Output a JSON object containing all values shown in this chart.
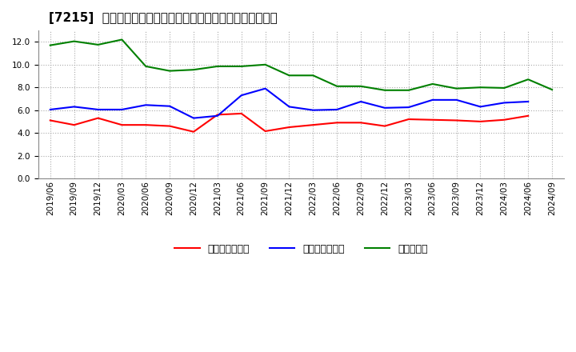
{
  "title": "[7215]  売上債権回転率、買入債務回転率、在庫回転率の推移",
  "x_labels": [
    "2019/06",
    "2019/09",
    "2019/12",
    "2020/03",
    "2020/06",
    "2020/09",
    "2020/12",
    "2021/03",
    "2021/06",
    "2021/09",
    "2021/12",
    "2022/03",
    "2022/06",
    "2022/09",
    "2022/12",
    "2023/03",
    "2023/06",
    "2023/09",
    "2023/12",
    "2024/03",
    "2024/06",
    "2024/09"
  ],
  "sales_turnover": [
    5.1,
    4.7,
    5.3,
    4.7,
    4.7,
    4.6,
    4.1,
    5.6,
    5.7,
    4.15,
    4.5,
    4.7,
    4.9,
    4.9,
    4.6,
    5.2,
    5.15,
    5.1,
    5.0,
    5.15,
    5.5,
    null
  ],
  "purchase_turnover": [
    6.05,
    6.3,
    6.05,
    6.05,
    6.45,
    6.35,
    5.3,
    5.5,
    7.3,
    7.9,
    6.3,
    6.0,
    6.05,
    6.75,
    6.2,
    6.25,
    6.9,
    6.9,
    6.3,
    6.65,
    6.75,
    null
  ],
  "inventory_turnover": [
    11.7,
    12.05,
    11.75,
    12.2,
    9.85,
    9.45,
    9.55,
    9.85,
    9.85,
    10.0,
    9.05,
    9.05,
    8.1,
    8.1,
    7.75,
    7.75,
    8.3,
    7.9,
    8.0,
    7.95,
    8.7,
    7.8
  ],
  "sales_color": "#ff0000",
  "purchase_color": "#0000ff",
  "inventory_color": "#008000",
  "ylim": [
    0.0,
    13.0
  ],
  "yticks": [
    0.0,
    2.0,
    4.0,
    6.0,
    8.0,
    10.0,
    12.0
  ],
  "legend_labels": [
    "売上債権回転率",
    "買入債務回転率",
    "在庫回転率"
  ],
  "background_color": "#ffffff",
  "grid_color": "#aaaaaa",
  "title_fontsize": 11,
  "tick_fontsize": 7.5,
  "legend_fontsize": 9
}
